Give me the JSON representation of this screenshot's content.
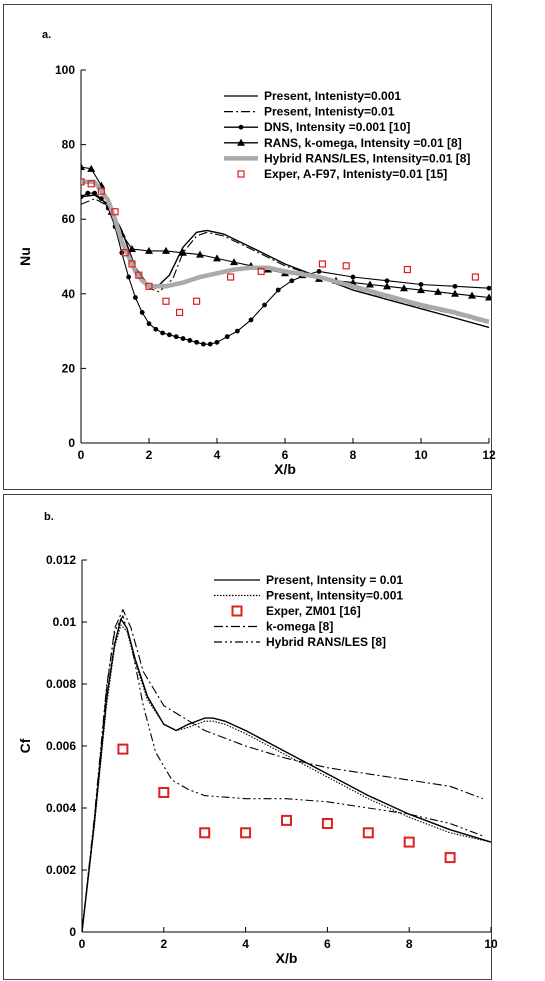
{
  "chart_data": [
    {
      "panel_label": "a.",
      "type": "line",
      "xlabel": "X/b",
      "ylabel": "Nu",
      "xlim": [
        0,
        12
      ],
      "ylim": [
        0,
        100
      ],
      "xticks": [
        "0",
        "2",
        "4",
        "6",
        "8",
        "10",
        "12"
      ],
      "yticks": [
        "0",
        "20",
        "40",
        "60",
        "80",
        "100"
      ],
      "grid": false,
      "legend_position": "top-right",
      "series": [
        {
          "name": "Present, Intenisty=0.001",
          "style": "solid",
          "x": [
            0,
            0.4,
            0.8,
            1.2,
            1.6,
            2.0,
            2.2,
            2.6,
            3.0,
            3.4,
            3.7,
            4.2,
            5,
            6,
            7,
            8,
            9,
            10,
            11,
            12
          ],
          "y": [
            66,
            66.5,
            64,
            57,
            47,
            42,
            41.5,
            45,
            52.5,
            56.5,
            57,
            56,
            52.5,
            48,
            44.5,
            41,
            38.5,
            36,
            33.5,
            31
          ]
        },
        {
          "name": "Present, Intenisty=0.01",
          "style": "dashdot",
          "x": [
            0,
            0.4,
            0.8,
            1.2,
            1.6,
            2.0,
            2.3,
            2.7,
            3.0,
            3.4,
            3.7,
            4.2,
            5,
            6,
            7,
            8,
            9,
            10,
            11,
            12
          ],
          "y": [
            64,
            65.5,
            63.5,
            57,
            47,
            41.5,
            40.5,
            44,
            51,
            55.5,
            56.5,
            55.5,
            52,
            47.5,
            44.5,
            41.5,
            39,
            36.5,
            34.5,
            32
          ]
        },
        {
          "name": "DNS, Intensity =0.001 [10]",
          "style": "dots",
          "x": [
            0,
            0.2,
            0.4,
            0.6,
            0.8,
            1.0,
            1.2,
            1.4,
            1.6,
            1.8,
            2.0,
            2.2,
            2.4,
            2.6,
            2.8,
            3.0,
            3.2,
            3.4,
            3.6,
            3.8,
            4.0,
            4.3,
            4.6,
            5.0,
            5.4,
            5.8,
            6.2,
            6.6,
            7,
            8,
            9,
            10,
            11,
            12
          ],
          "y": [
            66,
            67,
            67,
            65.5,
            63,
            58,
            51,
            44.5,
            39,
            35,
            32,
            30.5,
            29.5,
            29,
            28.5,
            28,
            27.5,
            27,
            26.5,
            26.5,
            27,
            28.5,
            30,
            33,
            37,
            41,
            43.5,
            45,
            46,
            44.5,
            43.5,
            42.5,
            42,
            41.5
          ]
        },
        {
          "name": "RANS, k-omega, Intensity =0.01 [8]",
          "style": "triangles",
          "x": [
            0,
            0.3,
            0.6,
            0.9,
            1.2,
            1.5,
            2.0,
            2.5,
            3.0,
            3.5,
            4.0,
            4.5,
            5.0,
            5.5,
            6.0,
            6.5,
            7.0,
            7.5,
            8.0,
            8.5,
            9.0,
            9.5,
            10.0,
            10.5,
            11.0,
            11.5,
            12.0
          ],
          "y": [
            74,
            73.5,
            69,
            62,
            56,
            52,
            51.5,
            51.5,
            51,
            50.5,
            49.5,
            48.5,
            47.5,
            46.5,
            45.5,
            45,
            44,
            43.5,
            43,
            42.5,
            42,
            41.5,
            41,
            40.5,
            40,
            39.5,
            39
          ]
        },
        {
          "name": "Hybrid RANS/LES, Intensity=0.01 [8]",
          "style": "thick-gray",
          "x": [
            0,
            0.4,
            0.8,
            1.0,
            1.2,
            1.4,
            1.6,
            1.8,
            2.0,
            2.5,
            3.0,
            3.5,
            4.0,
            4.5,
            5.0,
            5.5,
            6.0,
            7,
            8,
            9,
            10,
            11,
            12
          ],
          "y": [
            70,
            70,
            65,
            60,
            54,
            50,
            46,
            43.5,
            42,
            42,
            43,
            44.5,
            45.5,
            46.5,
            47,
            47,
            46,
            44.5,
            42,
            39.5,
            37,
            35,
            32.5
          ]
        },
        {
          "name": "Exper, A-F97, Intenisty=0.01 [15]",
          "style": "squares",
          "x": [
            0,
            0.3,
            0.6,
            1.0,
            1.3,
            1.5,
            1.7,
            2.0,
            2.5,
            2.9,
            3.4,
            4.4,
            5.3,
            7.1,
            7.8,
            9.6,
            11.6
          ],
          "y": [
            70,
            69.5,
            67.5,
            62,
            51,
            48,
            45,
            42,
            38,
            35,
            38,
            44.5,
            46,
            48,
            47.5,
            46.5,
            44.5
          ]
        }
      ]
    },
    {
      "panel_label": "b.",
      "type": "line",
      "xlabel": "X/b",
      "ylabel": "Cf",
      "xlim": [
        0,
        10
      ],
      "ylim": [
        0,
        0.012
      ],
      "xticks": [
        "0",
        "2",
        "4",
        "6",
        "8",
        "10"
      ],
      "yticks": [
        "0",
        "0.002",
        "0.004",
        "0.006",
        "0.008",
        "0.01",
        "0.012"
      ],
      "grid": false,
      "legend_position": "top-right",
      "series": [
        {
          "name": "Present, Intensity = 0.01",
          "style": "solid",
          "x": [
            0,
            0.3,
            0.6,
            0.8,
            0.95,
            1.1,
            1.3,
            1.6,
            2.0,
            2.3,
            2.6,
            3.0,
            3.2,
            3.5,
            4.0,
            5.0,
            6.0,
            7.0,
            8.0,
            9.0,
            10.0
          ],
          "y": [
            0,
            0.0035,
            0.0075,
            0.0093,
            0.0101,
            0.0098,
            0.0088,
            0.0076,
            0.0067,
            0.0065,
            0.0067,
            0.0069,
            0.0069,
            0.0068,
            0.0065,
            0.0058,
            0.0051,
            0.0044,
            0.0038,
            0.0033,
            0.0029
          ]
        },
        {
          "name": "Present, Intensity=0.001",
          "style": "dotted",
          "x": [
            0,
            0.3,
            0.6,
            0.8,
            0.95,
            1.1,
            1.3,
            1.6,
            2.0,
            2.3,
            2.6,
            3.0,
            3.2,
            3.5,
            4.0,
            5.0,
            6.0,
            7.0,
            8.0,
            9.0,
            10.0
          ],
          "y": [
            0,
            0.0034,
            0.0073,
            0.0092,
            0.0099,
            0.0097,
            0.0087,
            0.0075,
            0.0067,
            0.0065,
            0.0066,
            0.0068,
            0.0068,
            0.0067,
            0.0064,
            0.0057,
            0.005,
            0.0043,
            0.0037,
            0.0032,
            0.0029
          ]
        },
        {
          "name": "Exper, ZM01 [16]",
          "style": "squares",
          "x": [
            1.0,
            2.0,
            3.0,
            4.0,
            5.0,
            6.0,
            7.0,
            8.0,
            9.0
          ],
          "y": [
            0.0059,
            0.0045,
            0.0032,
            0.0032,
            0.0036,
            0.0035,
            0.0032,
            0.0029,
            0.0024
          ]
        },
        {
          "name": "k-omega [8]",
          "style": "dashdot",
          "x": [
            0,
            0.3,
            0.6,
            0.8,
            1.0,
            1.2,
            1.5,
            2.0,
            3.0,
            4.0,
            5.0,
            6.0,
            7.0,
            8.0,
            9.0,
            9.8
          ],
          "y": [
            0,
            0.0036,
            0.0078,
            0.0098,
            0.0104,
            0.0098,
            0.0084,
            0.0073,
            0.0065,
            0.006,
            0.0056,
            0.0053,
            0.0051,
            0.0049,
            0.0047,
            0.0043
          ]
        },
        {
          "name": "Hybrid RANS/LES [8]",
          "style": "dashdotdot",
          "x": [
            0,
            0.3,
            0.6,
            0.8,
            1.0,
            1.2,
            1.5,
            1.8,
            2.2,
            2.6,
            3.0,
            4.0,
            5.0,
            6.0,
            7.0,
            8.0,
            9.0,
            9.8
          ],
          "y": [
            0,
            0.0037,
            0.0079,
            0.0097,
            0.0102,
            0.0093,
            0.0073,
            0.0058,
            0.0049,
            0.0046,
            0.0044,
            0.0043,
            0.0043,
            0.0042,
            0.004,
            0.0038,
            0.0035,
            0.0031
          ]
        }
      ]
    }
  ],
  "colors": {
    "line": "#000000",
    "hybrid_thick": "#aaaaaa",
    "experiment_marker": "#dd2020"
  }
}
